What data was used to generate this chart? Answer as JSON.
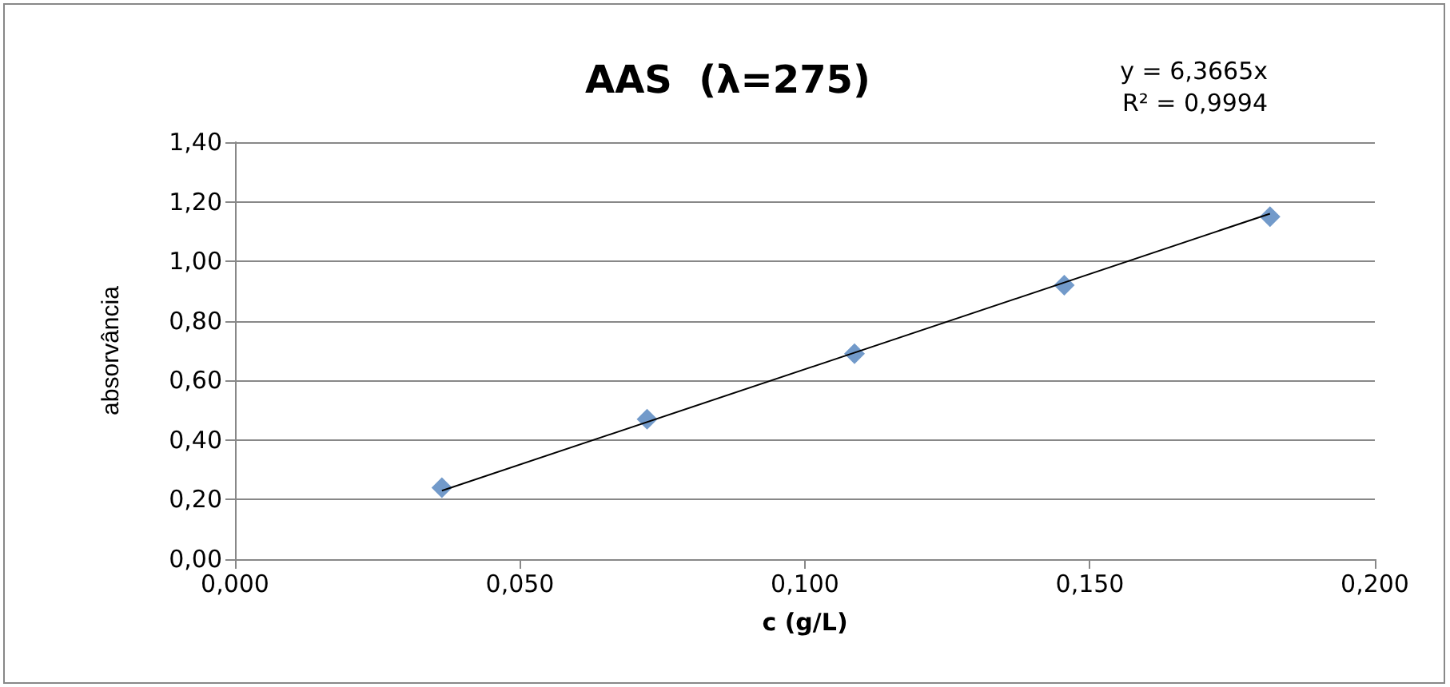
{
  "chart_data": {
    "type": "scatter",
    "title": "AAS  (λ=275)",
    "xlabel": "c (g/L)",
    "ylabel": "absorvância",
    "annotations": [
      "y = 6,3665x",
      "R² = 0,9994"
    ],
    "series": [
      {
        "color": "#4f81bd",
        "marker": "diamond",
        "x": [
          0.0363,
          0.0723,
          0.1087,
          0.1455,
          0.1816
        ],
        "values": [
          0.24,
          0.47,
          0.69,
          0.92,
          1.15
        ]
      },
      {
        "type": "line",
        "color": "#000000",
        "marker": "none",
        "line_style": "solid",
        "x": [
          0.0363,
          0.1816
        ],
        "values": [
          0.23,
          1.16
        ]
      }
    ],
    "xlim": [
      0,
      0.2
    ],
    "xticks": [
      {
        "value": 0,
        "label": "0,000"
      },
      {
        "value": 0.05,
        "label": "0,050"
      },
      {
        "value": 0.1,
        "label": "0,100"
      },
      {
        "value": 0.15,
        "label": "0,150"
      },
      {
        "value": 0.2,
        "label": "0,200"
      }
    ],
    "ylim": [
      0,
      1.4
    ],
    "yticks": [
      {
        "value": 0,
        "label": "0,00"
      },
      {
        "value": 0.2,
        "label": "0,20"
      },
      {
        "value": 0.4,
        "label": "0,40"
      },
      {
        "value": 0.6,
        "label": "0,60"
      },
      {
        "value": 0.8,
        "label": "0,80"
      },
      {
        "value": 1,
        "label": "1,00"
      },
      {
        "value": 1.2,
        "label": "1,20"
      },
      {
        "value": 1.4,
        "label": "1,40"
      }
    ],
    "grid": "y"
  }
}
